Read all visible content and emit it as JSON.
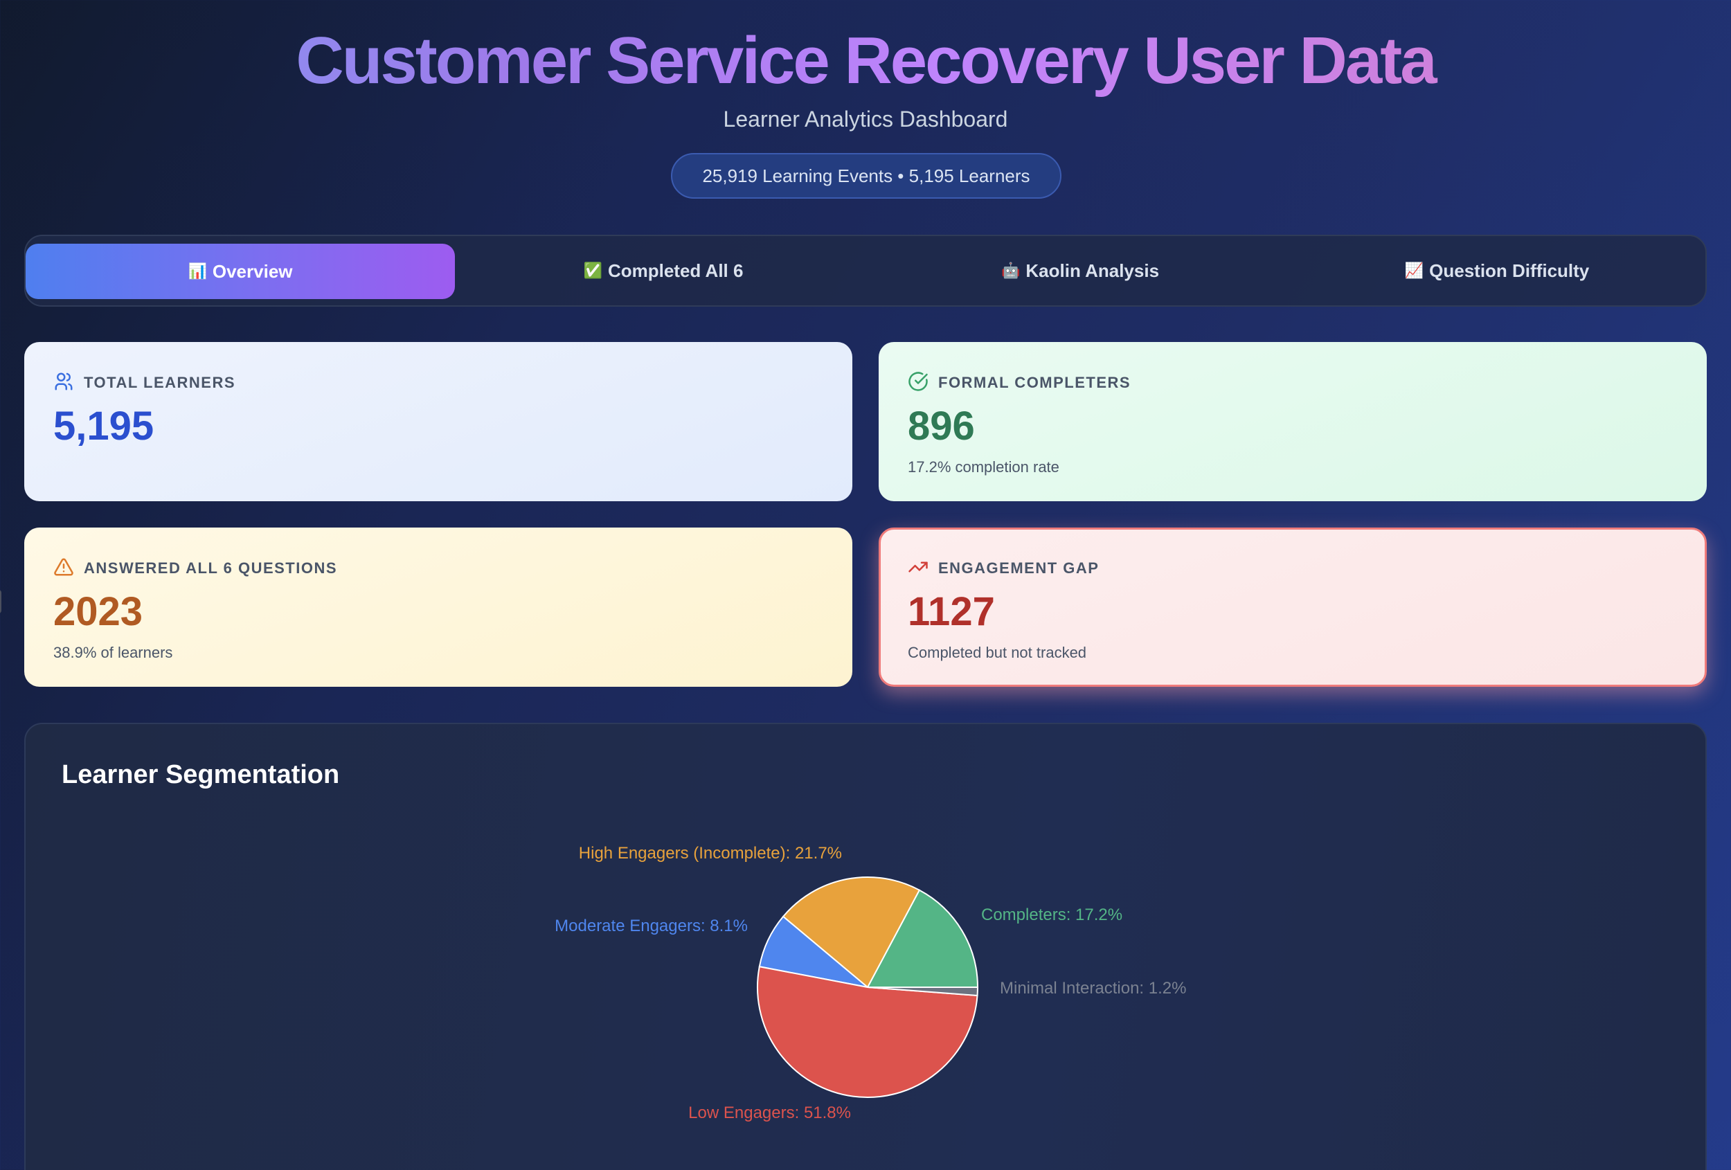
{
  "header": {
    "title": "Customer Service Recovery User Data",
    "subtitle": "Learner Analytics Dashboard",
    "summary_pill": "25,919 Learning Events • 5,195 Learners"
  },
  "tabs": [
    {
      "icon": "📊",
      "label": "Overview",
      "active": true
    },
    {
      "icon": "✅",
      "label": "Completed All 6",
      "active": false
    },
    {
      "icon": "🤖",
      "label": "Kaolin Analysis",
      "active": false
    },
    {
      "icon": "📈",
      "label": "Question Difficulty",
      "active": false
    }
  ],
  "stats": {
    "total_learners": {
      "label": "TOTAL LEARNERS",
      "value": "5,195",
      "sub": "",
      "icon": "users-icon",
      "color": "#2b4fcf"
    },
    "formal_completers": {
      "label": "FORMAL COMPLETERS",
      "value": "896",
      "sub": "17.2% completion rate",
      "icon": "check-circle-icon",
      "color": "#2f7a55"
    },
    "answered_all": {
      "label": "ANSWERED ALL 6 QUESTIONS",
      "value": "2023",
      "sub": "38.9% of learners",
      "icon": "warning-triangle-icon",
      "color": "#b05a22"
    },
    "engagement_gap": {
      "label": "ENGAGEMENT GAP",
      "value": "1127",
      "sub": "Completed but not tracked",
      "icon": "trending-up-icon",
      "color": "#b0302a"
    }
  },
  "segmentation": {
    "title": "Learner Segmentation"
  },
  "chart_data": {
    "type": "pie",
    "title": "Learner Segmentation",
    "categories": [
      "Completers",
      "High Engagers (Incomplete)",
      "Moderate Engagers",
      "Low Engagers",
      "Minimal Interaction"
    ],
    "values": [
      17.2,
      21.7,
      8.1,
      51.8,
      1.2
    ],
    "unit": "%",
    "colors": [
      "#54b586",
      "#e8a23c",
      "#4f86ee",
      "#dc534d",
      "#6b7280"
    ],
    "labels": [
      "Completers: 17.2%",
      "High Engagers (Incomplete): 21.7%",
      "Moderate Engagers: 8.1%",
      "Low Engagers: 51.8%",
      "Minimal Interaction: 1.2%"
    ],
    "legend": "outside labels",
    "start_angle": "3 o'clock, counterclockwise"
  }
}
